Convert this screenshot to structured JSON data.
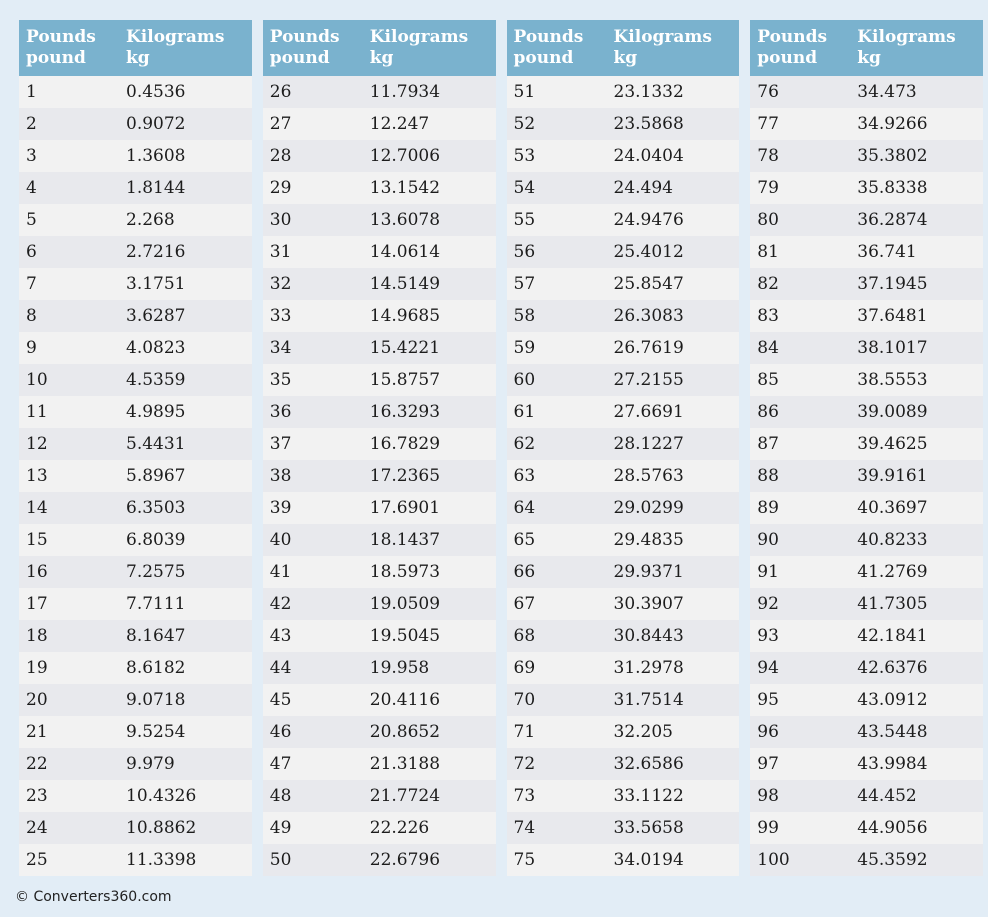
{
  "colors": {
    "page_background": "#e2edf6",
    "header_background": "#7ab2ce",
    "header_text": "#ffffff",
    "row_odd": "#f2f2f2",
    "row_even": "#e8e9ed"
  },
  "table_header": {
    "col1_line1": "Pounds",
    "col1_line2": "pound",
    "col2_line1": "Kilograms",
    "col2_line2": "kg"
  },
  "tables": [
    {
      "rows": [
        {
          "lb": 1,
          "kg": "0.4536"
        },
        {
          "lb": 2,
          "kg": "0.9072"
        },
        {
          "lb": 3,
          "kg": "1.3608"
        },
        {
          "lb": 4,
          "kg": "1.8144"
        },
        {
          "lb": 5,
          "kg": "2.268"
        },
        {
          "lb": 6,
          "kg": "2.7216"
        },
        {
          "lb": 7,
          "kg": "3.1751"
        },
        {
          "lb": 8,
          "kg": "3.6287"
        },
        {
          "lb": 9,
          "kg": "4.0823"
        },
        {
          "lb": 10,
          "kg": "4.5359"
        },
        {
          "lb": 11,
          "kg": "4.9895"
        },
        {
          "lb": 12,
          "kg": "5.4431"
        },
        {
          "lb": 13,
          "kg": "5.8967"
        },
        {
          "lb": 14,
          "kg": "6.3503"
        },
        {
          "lb": 15,
          "kg": "6.8039"
        },
        {
          "lb": 16,
          "kg": "7.2575"
        },
        {
          "lb": 17,
          "kg": "7.7111"
        },
        {
          "lb": 18,
          "kg": "8.1647"
        },
        {
          "lb": 19,
          "kg": "8.6182"
        },
        {
          "lb": 20,
          "kg": "9.0718"
        },
        {
          "lb": 21,
          "kg": "9.5254"
        },
        {
          "lb": 22,
          "kg": "9.979"
        },
        {
          "lb": 23,
          "kg": "10.4326"
        },
        {
          "lb": 24,
          "kg": "10.8862"
        },
        {
          "lb": 25,
          "kg": "11.3398"
        }
      ]
    },
    {
      "rows": [
        {
          "lb": 26,
          "kg": "11.7934"
        },
        {
          "lb": 27,
          "kg": "12.247"
        },
        {
          "lb": 28,
          "kg": "12.7006"
        },
        {
          "lb": 29,
          "kg": "13.1542"
        },
        {
          "lb": 30,
          "kg": "13.6078"
        },
        {
          "lb": 31,
          "kg": "14.0614"
        },
        {
          "lb": 32,
          "kg": "14.5149"
        },
        {
          "lb": 33,
          "kg": "14.9685"
        },
        {
          "lb": 34,
          "kg": "15.4221"
        },
        {
          "lb": 35,
          "kg": "15.8757"
        },
        {
          "lb": 36,
          "kg": "16.3293"
        },
        {
          "lb": 37,
          "kg": "16.7829"
        },
        {
          "lb": 38,
          "kg": "17.2365"
        },
        {
          "lb": 39,
          "kg": "17.6901"
        },
        {
          "lb": 40,
          "kg": "18.1437"
        },
        {
          "lb": 41,
          "kg": "18.5973"
        },
        {
          "lb": 42,
          "kg": "19.0509"
        },
        {
          "lb": 43,
          "kg": "19.5045"
        },
        {
          "lb": 44,
          "kg": "19.958"
        },
        {
          "lb": 45,
          "kg": "20.4116"
        },
        {
          "lb": 46,
          "kg": "20.8652"
        },
        {
          "lb": 47,
          "kg": "21.3188"
        },
        {
          "lb": 48,
          "kg": "21.7724"
        },
        {
          "lb": 49,
          "kg": "22.226"
        },
        {
          "lb": 50,
          "kg": "22.6796"
        }
      ]
    },
    {
      "rows": [
        {
          "lb": 51,
          "kg": "23.1332"
        },
        {
          "lb": 52,
          "kg": "23.5868"
        },
        {
          "lb": 53,
          "kg": "24.0404"
        },
        {
          "lb": 54,
          "kg": "24.494"
        },
        {
          "lb": 55,
          "kg": "24.9476"
        },
        {
          "lb": 56,
          "kg": "25.4012"
        },
        {
          "lb": 57,
          "kg": "25.8547"
        },
        {
          "lb": 58,
          "kg": "26.3083"
        },
        {
          "lb": 59,
          "kg": "26.7619"
        },
        {
          "lb": 60,
          "kg": "27.2155"
        },
        {
          "lb": 61,
          "kg": "27.6691"
        },
        {
          "lb": 62,
          "kg": "28.1227"
        },
        {
          "lb": 63,
          "kg": "28.5763"
        },
        {
          "lb": 64,
          "kg": "29.0299"
        },
        {
          "lb": 65,
          "kg": "29.4835"
        },
        {
          "lb": 66,
          "kg": "29.9371"
        },
        {
          "lb": 67,
          "kg": "30.3907"
        },
        {
          "lb": 68,
          "kg": "30.8443"
        },
        {
          "lb": 69,
          "kg": "31.2978"
        },
        {
          "lb": 70,
          "kg": "31.7514"
        },
        {
          "lb": 71,
          "kg": "32.205"
        },
        {
          "lb": 72,
          "kg": "32.6586"
        },
        {
          "lb": 73,
          "kg": "33.1122"
        },
        {
          "lb": 74,
          "kg": "33.5658"
        },
        {
          "lb": 75,
          "kg": "34.0194"
        }
      ]
    },
    {
      "rows": [
        {
          "lb": 76,
          "kg": "34.473"
        },
        {
          "lb": 77,
          "kg": "34.9266"
        },
        {
          "lb": 78,
          "kg": "35.3802"
        },
        {
          "lb": 79,
          "kg": "35.8338"
        },
        {
          "lb": 80,
          "kg": "36.2874"
        },
        {
          "lb": 81,
          "kg": "36.741"
        },
        {
          "lb": 82,
          "kg": "37.1945"
        },
        {
          "lb": 83,
          "kg": "37.6481"
        },
        {
          "lb": 84,
          "kg": "38.1017"
        },
        {
          "lb": 85,
          "kg": "38.5553"
        },
        {
          "lb": 86,
          "kg": "39.0089"
        },
        {
          "lb": 87,
          "kg": "39.4625"
        },
        {
          "lb": 88,
          "kg": "39.9161"
        },
        {
          "lb": 89,
          "kg": "40.3697"
        },
        {
          "lb": 90,
          "kg": "40.8233"
        },
        {
          "lb": 91,
          "kg": "41.2769"
        },
        {
          "lb": 92,
          "kg": "41.7305"
        },
        {
          "lb": 93,
          "kg": "42.1841"
        },
        {
          "lb": 94,
          "kg": "42.6376"
        },
        {
          "lb": 95,
          "kg": "43.0912"
        },
        {
          "lb": 96,
          "kg": "43.5448"
        },
        {
          "lb": 97,
          "kg": "43.9984"
        },
        {
          "lb": 98,
          "kg": "44.452"
        },
        {
          "lb": 99,
          "kg": "44.9056"
        },
        {
          "lb": 100,
          "kg": "45.3592"
        }
      ]
    }
  ],
  "footer": {
    "copyright": "© Converters360.com"
  }
}
